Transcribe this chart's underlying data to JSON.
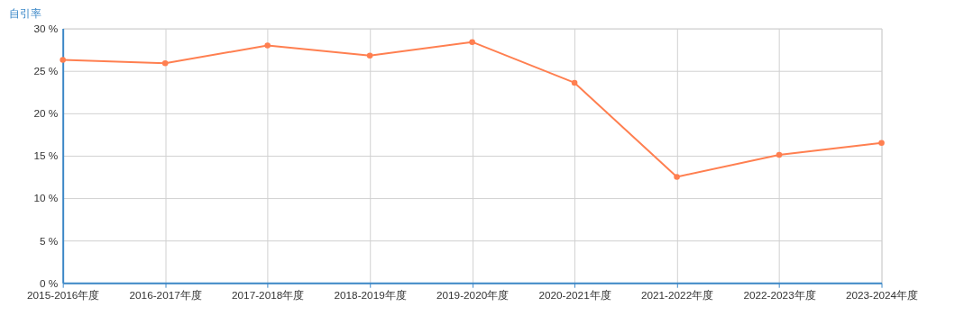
{
  "chart_data": {
    "type": "line",
    "ylabel": "自引率",
    "categories": [
      "2015-2016年度",
      "2016-2017年度",
      "2017-2018年度",
      "2018-2019年度",
      "2019-2020年度",
      "2020-2021年度",
      "2021-2022年度",
      "2022-2023年度",
      "2023-2024年度"
    ],
    "series": [
      {
        "color": "#ff7f50",
        "values": [
          26.3,
          25.9,
          28.0,
          26.8,
          28.4,
          23.6,
          12.5,
          15.1,
          16.5
        ]
      }
    ],
    "ylim": [
      0,
      30
    ],
    "yticks": [
      {
        "value": 0,
        "label": "0 %"
      },
      {
        "value": 5,
        "label": "5 %"
      },
      {
        "value": 10,
        "label": "10 %"
      },
      {
        "value": 15,
        "label": "15 %"
      },
      {
        "value": 20,
        "label": "20 %"
      },
      {
        "value": 25,
        "label": "25 %"
      },
      {
        "value": 30,
        "label": "30 %"
      }
    ],
    "grid": true,
    "marker": "circle",
    "line_style": "solid"
  }
}
